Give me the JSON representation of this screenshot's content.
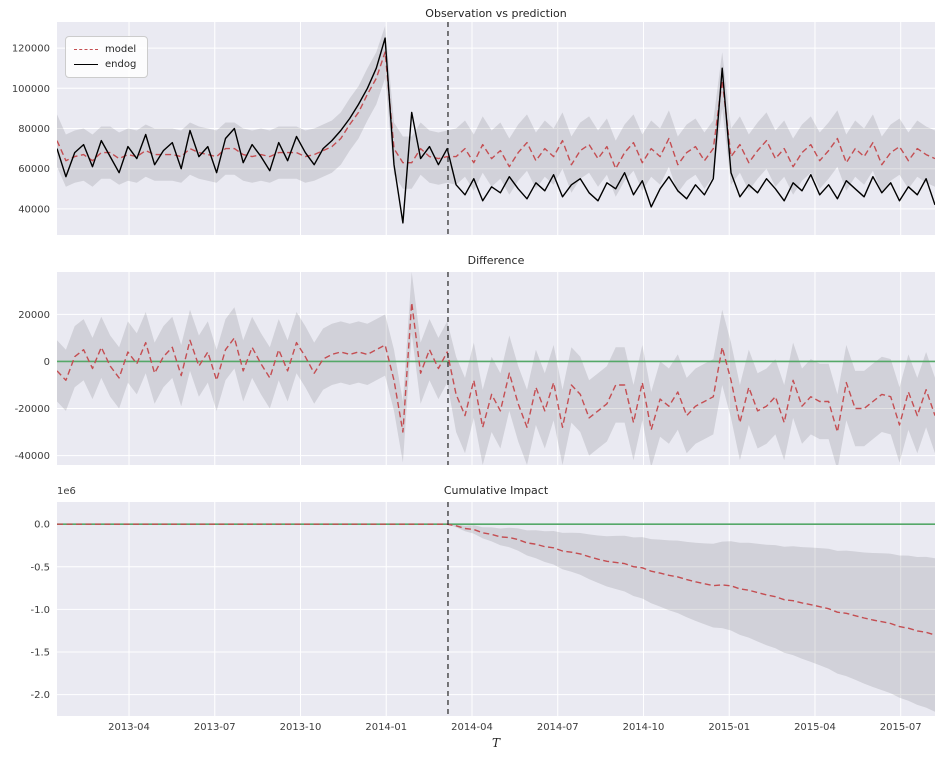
{
  "style": {
    "panel_bg": "#eaeaf2",
    "grid": "#ffffff",
    "band": "rgba(68,68,76,0.15)",
    "zero_line": "#55a868",
    "intervention": "#262626",
    "tick_color": "#3d3d3d",
    "title_color": "#262626"
  },
  "x_axis": {
    "domain": [
      2013.04,
      2015.6
    ],
    "ticks": [
      2013.25,
      2013.5,
      2013.75,
      2014.0,
      2014.25,
      2014.5,
      2014.75,
      2015.0,
      2015.25,
      2015.5
    ],
    "tick_labels": [
      "2013-04",
      "2013-07",
      "2013-10",
      "2014-01",
      "2014-04",
      "2014-07",
      "2014-10",
      "2015-01",
      "2015-04",
      "2015-07"
    ],
    "label": "T",
    "intervention_x": 2014.18,
    "intervention_index": 44
  },
  "chart_data": [
    {
      "type": "line",
      "title": "Observation vs prediction",
      "y_domain": [
        27000,
        133000
      ],
      "y_ticks": [
        40000,
        60000,
        80000,
        100000,
        120000
      ],
      "y_tick_labels": [
        "40000",
        "60000",
        "80000",
        "100000",
        "120000"
      ],
      "legend": [
        {
          "label": "model"
        },
        {
          "label": "endog"
        }
      ],
      "zero_line": false,
      "band": {
        "center": "model",
        "halfwidth_pre": 13000,
        "halfwidth_post": 14000
      },
      "series": [
        {
          "name": "model",
          "color": "#c44e52",
          "dash": true,
          "values": [
            74000,
            64000,
            66000,
            67000,
            64000,
            68000,
            68000,
            65000,
            67000,
            66000,
            69000,
            67000,
            67000,
            67000,
            66000,
            70000,
            68000,
            67000,
            66000,
            70000,
            70000,
            67000,
            66000,
            67000,
            66000,
            68000,
            68000,
            68000,
            66000,
            67000,
            69000,
            71000,
            75000,
            82000,
            88000,
            97000,
            105000,
            118000,
            70000,
            63000,
            63000,
            70000,
            66000,
            65000,
            66000,
            66000,
            70000,
            63000,
            72000,
            65000,
            69000,
            61000,
            68000,
            73000,
            64000,
            70000,
            66000,
            74000,
            62000,
            69000,
            72000,
            65000,
            71000,
            60000,
            68000,
            73000,
            63000,
            70000,
            66000,
            75000,
            62000,
            68000,
            71000,
            64000,
            70000,
            104000,
            66000,
            72000,
            63000,
            69000,
            74000,
            65000,
            70000,
            61000,
            68000,
            72000,
            64000,
            69000,
            75000,
            63000,
            70000,
            66000,
            73000,
            62000,
            68000,
            71000,
            64000,
            70000,
            67000,
            65000
          ]
        },
        {
          "name": "endog",
          "color": "#000000",
          "dash": false,
          "values": [
            70000,
            56000,
            68000,
            72000,
            61000,
            74000,
            66000,
            58000,
            71000,
            65000,
            77000,
            62000,
            69000,
            73000,
            60000,
            79000,
            66000,
            71000,
            58000,
            75000,
            80000,
            63000,
            72000,
            66000,
            59000,
            73000,
            64000,
            76000,
            68000,
            62000,
            70000,
            74000,
            79000,
            85000,
            92000,
            100000,
            110000,
            125000,
            62000,
            33000,
            88000,
            65000,
            71000,
            62000,
            70000,
            52000,
            47000,
            55000,
            44000,
            51000,
            48000,
            56000,
            50000,
            45000,
            53000,
            49000,
            57000,
            46000,
            52000,
            55000,
            48000,
            44000,
            53000,
            50000,
            58000,
            47000,
            54000,
            41000,
            50000,
            56000,
            49000,
            45000,
            52000,
            47000,
            55000,
            110000,
            58000,
            46000,
            52000,
            48000,
            55000,
            50000,
            44000,
            53000,
            49000,
            57000,
            47000,
            52000,
            45000,
            54000,
            50000,
            46000,
            56000,
            48000,
            53000,
            44000,
            51000,
            47000,
            55000,
            42000
          ]
        }
      ]
    },
    {
      "type": "line",
      "title": "Difference",
      "y_domain": [
        -44000,
        38000
      ],
      "y_ticks": [
        20000,
        0,
        -20000,
        -40000
      ],
      "y_tick_labels": [
        "20000",
        "0",
        "-20000",
        "-40000"
      ],
      "zero_line": true,
      "band": {
        "center": "difference",
        "halfwidth_pre": 13000,
        "halfwidth_post": 16000
      },
      "series": [
        {
          "name": "difference",
          "color": "#c44e52",
          "dash": true,
          "values": [
            -4000,
            -8000,
            2000,
            5000,
            -3000,
            6000,
            -2000,
            -7000,
            4000,
            -1000,
            8000,
            -5000,
            2000,
            6000,
            -6000,
            9000,
            -2000,
            4000,
            -8000,
            5000,
            10000,
            -4000,
            6000,
            -1000,
            -7000,
            5000,
            -4000,
            8000,
            2000,
            -5000,
            1000,
            3000,
            4000,
            3000,
            4000,
            3000,
            5000,
            7000,
            -8000,
            -30000,
            25000,
            -5000,
            5000,
            -3000,
            4000,
            -14000,
            -23000,
            -8000,
            -28000,
            -14000,
            -21000,
            -5000,
            -18000,
            -28000,
            -11000,
            -21000,
            -9000,
            -28000,
            -10000,
            -14000,
            -24000,
            -21000,
            -18000,
            -10000,
            -10000,
            -26000,
            -9000,
            -29000,
            -16000,
            -19000,
            -13000,
            -23000,
            -19000,
            -17000,
            -15000,
            6000,
            -8000,
            -26000,
            -11000,
            -21000,
            -19000,
            -15000,
            -26000,
            -8000,
            -19000,
            -15000,
            -17000,
            -17000,
            -30000,
            -9000,
            -20000,
            -20000,
            -17000,
            -14000,
            -15000,
            -27000,
            -13000,
            -23000,
            -12000,
            -23000
          ]
        }
      ]
    },
    {
      "type": "line",
      "title": "Cumulative Impact",
      "y_domain": [
        -2250000,
        260000
      ],
      "y_ticks": [
        0,
        -500000,
        -1000000,
        -1500000,
        -2000000
      ],
      "y_tick_labels": [
        "0.0",
        "-0.5",
        "-1.0",
        "-1.5",
        "-2.0"
      ],
      "y_offset_label": "1e6",
      "zero_line": true,
      "band": {
        "center": "cumulative",
        "halfwidth_pre": 0,
        "halfwidth_end": 900000,
        "growth": "linear"
      },
      "series": [
        {
          "name": "cumulative",
          "color": "#c44e52",
          "dash": true,
          "values": [
            0,
            0,
            0,
            0,
            0,
            0,
            0,
            0,
            0,
            0,
            0,
            0,
            0,
            0,
            0,
            0,
            0,
            0,
            0,
            0,
            0,
            0,
            0,
            0,
            0,
            0,
            0,
            0,
            0,
            0,
            0,
            0,
            0,
            0,
            0,
            0,
            0,
            0,
            0,
            0,
            0,
            0,
            0,
            0,
            0,
            -19000,
            -51000,
            -62000,
            -101000,
            -120000,
            -149000,
            -156000,
            -181000,
            -220000,
            -235000,
            -264000,
            -277000,
            -315000,
            -329000,
            -349000,
            -382000,
            -411000,
            -436000,
            -449000,
            -463000,
            -499000,
            -512000,
            -552000,
            -574000,
            -600000,
            -618000,
            -650000,
            -676000,
            -700000,
            -721000,
            -712000,
            -723000,
            -759000,
            -774000,
            -803000,
            -830000,
            -851000,
            -886000,
            -898000,
            -924000,
            -945000,
            -968000,
            -992000,
            -1033000,
            -1046000,
            -1073000,
            -1101000,
            -1124000,
            -1144000,
            -1165000,
            -1202000,
            -1220000,
            -1252000,
            -1268000,
            -1300000
          ]
        }
      ]
    }
  ]
}
